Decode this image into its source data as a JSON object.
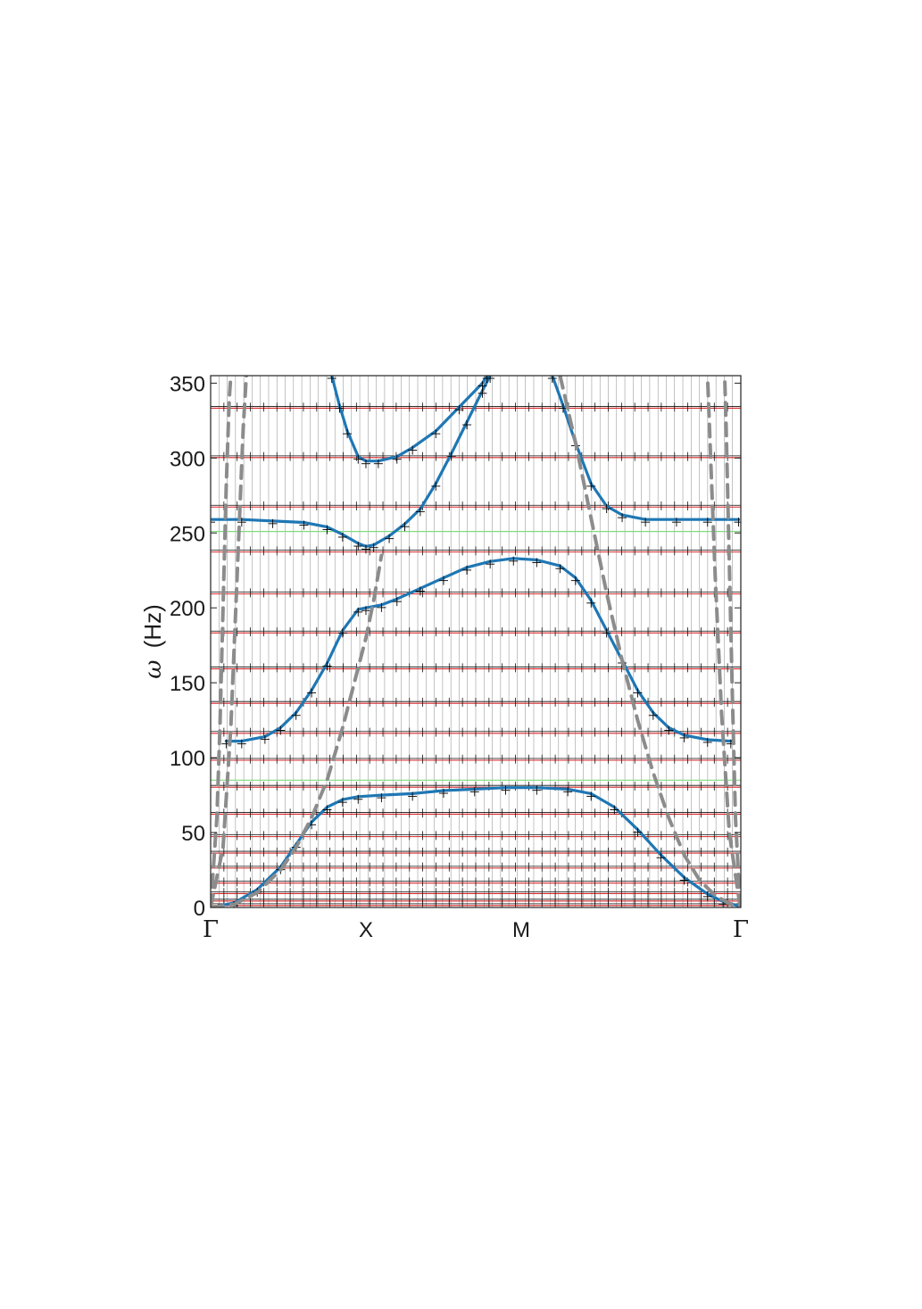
{
  "chart_data": {
    "type": "line",
    "title": "",
    "xlabel": "",
    "ylabel": "ω (Hz)",
    "ylabel_parts": {
      "symbol": "ω",
      "unit": "(Hz)"
    },
    "ylim": [
      0,
      355
    ],
    "yticks": [
      0,
      50,
      100,
      150,
      200,
      250,
      300,
      350
    ],
    "x_symmetry_points": [
      {
        "label": "Γ",
        "x": 0
      },
      {
        "label": "X",
        "x": 1
      },
      {
        "label": "M",
        "x": 2
      },
      {
        "label": "Γ",
        "x": 3.4142
      }
    ],
    "grid": false,
    "colors": {
      "dispersion": "#1f77b4",
      "light_cone": "#8c8c8c",
      "resonance_lines": "#d62728",
      "band_edges": "#7fdc7f",
      "markers": "#000000"
    },
    "resonance_levels": [
      2,
      5,
      10,
      17,
      27,
      37,
      48,
      63,
      81,
      99,
      117,
      137,
      160,
      184,
      210,
      238,
      268,
      301,
      334
    ],
    "band_edges": [
      85,
      251
    ],
    "series": [
      {
        "style": "solid",
        "color": "#1f77b4",
        "points": [
          [
            0.05,
            1
          ],
          [
            0.15,
            3
          ],
          [
            0.3,
            12
          ],
          [
            0.45,
            27
          ],
          [
            0.55,
            42
          ],
          [
            0.65,
            57
          ],
          [
            0.75,
            67
          ],
          [
            0.85,
            72
          ],
          [
            0.95,
            74
          ],
          [
            1.1,
            75
          ],
          [
            1.3,
            76
          ],
          [
            1.5,
            78
          ],
          [
            1.7,
            79
          ],
          [
            1.9,
            80
          ],
          [
            2.1,
            80
          ],
          [
            2.3,
            79
          ],
          [
            2.45,
            76
          ],
          [
            2.6,
            67
          ],
          [
            2.75,
            52
          ],
          [
            2.9,
            35
          ],
          [
            3.05,
            20
          ],
          [
            3.2,
            9
          ],
          [
            3.3,
            4
          ],
          [
            3.4,
            1
          ]
        ]
      },
      {
        "style": "solid",
        "color": "#1f77b4",
        "points": [
          [
            0.1,
            111
          ],
          [
            0.2,
            111
          ],
          [
            0.35,
            114
          ],
          [
            0.45,
            120
          ],
          [
            0.55,
            130
          ],
          [
            0.65,
            145
          ],
          [
            0.75,
            163
          ],
          [
            0.85,
            185
          ],
          [
            0.95,
            199
          ],
          [
            1.0,
            200
          ],
          [
            1.1,
            202
          ],
          [
            1.2,
            206
          ],
          [
            1.35,
            213
          ],
          [
            1.5,
            220
          ],
          [
            1.65,
            227
          ],
          [
            1.8,
            231
          ],
          [
            1.95,
            233
          ],
          [
            2.1,
            232
          ],
          [
            2.25,
            228
          ],
          [
            2.35,
            220
          ],
          [
            2.45,
            205
          ],
          [
            2.55,
            185
          ],
          [
            2.65,
            165
          ],
          [
            2.75,
            145
          ],
          [
            2.85,
            130
          ],
          [
            2.95,
            120
          ],
          [
            3.05,
            115
          ],
          [
            3.2,
            112
          ],
          [
            3.35,
            111
          ]
        ]
      },
      {
        "style": "solid",
        "color": "#1f77b4",
        "points": [
          [
            0.0,
            259
          ],
          [
            0.2,
            259
          ],
          [
            0.4,
            258
          ],
          [
            0.6,
            257
          ],
          [
            0.75,
            254
          ],
          [
            0.85,
            249
          ],
          [
            0.95,
            243
          ],
          [
            1.0,
            241
          ],
          [
            1.05,
            242
          ],
          [
            1.15,
            248
          ],
          [
            1.25,
            256
          ],
          [
            1.35,
            266
          ],
          [
            1.45,
            283
          ],
          [
            1.55,
            303
          ],
          [
            1.65,
            324
          ],
          [
            1.75,
            345
          ],
          [
            1.8,
            355
          ]
        ]
      },
      {
        "style": "solid",
        "color": "#1f77b4",
        "points": [
          [
            0.78,
            355
          ],
          [
            0.83,
            335
          ],
          [
            0.88,
            318
          ],
          [
            0.95,
            301
          ],
          [
            1.0,
            298
          ],
          [
            1.08,
            298
          ],
          [
            1.2,
            301
          ],
          [
            1.3,
            307
          ],
          [
            1.45,
            318
          ],
          [
            1.6,
            334
          ],
          [
            1.75,
            350
          ],
          [
            1.78,
            355
          ]
        ]
      },
      {
        "style": "solid",
        "color": "#1f77b4",
        "points": [
          [
            2.2,
            355
          ],
          [
            2.27,
            335
          ],
          [
            2.35,
            310
          ],
          [
            2.45,
            283
          ],
          [
            2.55,
            268
          ],
          [
            2.65,
            262
          ],
          [
            2.8,
            259
          ],
          [
            3.0,
            259
          ],
          [
            3.2,
            259
          ],
          [
            3.4,
            259
          ]
        ]
      },
      {
        "style": "dashed",
        "color": "#8c8c8c",
        "points": [
          [
            0.0,
            0
          ],
          [
            0.15,
            2
          ],
          [
            0.3,
            10
          ],
          [
            0.45,
            25
          ],
          [
            0.55,
            40
          ],
          [
            0.65,
            60
          ],
          [
            0.75,
            85
          ],
          [
            0.85,
            120
          ],
          [
            0.95,
            160
          ],
          [
            1.0,
            180
          ],
          [
            1.05,
            205
          ],
          [
            1.1,
            235
          ]
        ]
      },
      {
        "style": "dashed",
        "color": "#8c8c8c",
        "points": [
          [
            2.25,
            355
          ],
          [
            2.35,
            310
          ],
          [
            2.45,
            260
          ],
          [
            2.55,
            210
          ],
          [
            2.65,
            165
          ],
          [
            2.75,
            125
          ],
          [
            2.85,
            90
          ],
          [
            2.95,
            60
          ],
          [
            3.05,
            35
          ],
          [
            3.15,
            18
          ],
          [
            3.25,
            8
          ],
          [
            3.35,
            2
          ],
          [
            3.4,
            0
          ]
        ]
      },
      {
        "style": "dashed",
        "color": "#8c8c8c",
        "points": [
          [
            0.0,
            0
          ],
          [
            0.04,
            60
          ],
          [
            0.06,
            120
          ],
          [
            0.08,
            200
          ],
          [
            0.1,
            280
          ],
          [
            0.12,
            340
          ],
          [
            0.13,
            355
          ]
        ]
      },
      {
        "style": "dashed",
        "color": "#8c8c8c",
        "points": [
          [
            0.0,
            0
          ],
          [
            0.08,
            40
          ],
          [
            0.13,
            120
          ],
          [
            0.17,
            220
          ],
          [
            0.21,
            320
          ],
          [
            0.23,
            355
          ]
        ]
      },
      {
        "style": "dashed",
        "color": "#8c8c8c",
        "points": [
          [
            3.41,
            0
          ],
          [
            3.38,
            60
          ],
          [
            3.36,
            140
          ],
          [
            3.34,
            230
          ],
          [
            3.32,
            320
          ],
          [
            3.31,
            355
          ]
        ]
      },
      {
        "style": "dashed",
        "color": "#8c8c8c",
        "points": [
          [
            3.41,
            0
          ],
          [
            3.34,
            50
          ],
          [
            3.29,
            130
          ],
          [
            3.25,
            220
          ],
          [
            3.22,
            300
          ],
          [
            3.2,
            355
          ]
        ]
      }
    ]
  }
}
